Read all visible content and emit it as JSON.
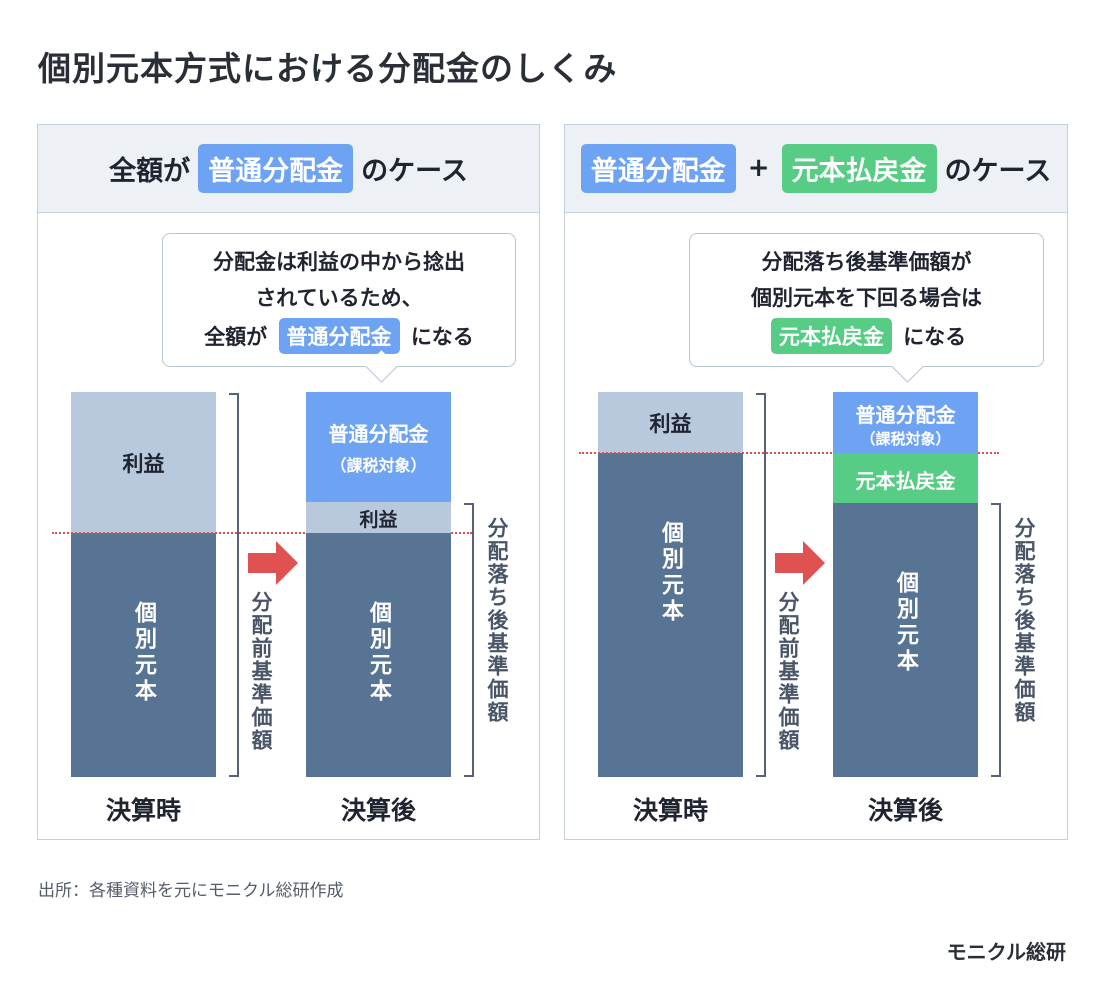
{
  "title": "個別元本方式における分配金のしくみ",
  "left_panel": {
    "header_pre": "全額が",
    "header_chip": "普通分配金",
    "header_post": "のケース",
    "bubble_line1": "分配金は利益の中から捻出",
    "bubble_line2": "されているため、",
    "bubble_line3_pre": "全額が",
    "bubble_line3_chip": "普通分配金",
    "bubble_line3_post": "になる",
    "before_profit": "利益",
    "before_principal": "個別元本",
    "before_bracket_label": "分配前基準価額",
    "after_dist": "普通分配金",
    "after_dist_sub": "（課税対象）",
    "after_profit": "利益",
    "after_principal": "個別元本",
    "after_bracket_label": "分配落ち後基準価額",
    "label_before": "決算時",
    "label_after": "決算後"
  },
  "right_panel": {
    "header_chip1": "普通分配金",
    "header_plus": "+",
    "header_chip2": "元本払戻金",
    "header_post": "のケース",
    "bubble_line1": "分配落ち後基準価額が",
    "bubble_line2": "個別元本を下回る場合は",
    "bubble_line3_chip": "元本払戻金",
    "bubble_line3_post": "になる",
    "before_profit": "利益",
    "before_principal": "個別元本",
    "before_bracket_label": "分配前基準価額",
    "after_dist": "普通分配金",
    "after_dist_sub": "（課税対象）",
    "after_refund": "元本払戻金",
    "after_principal": "個別元本",
    "after_bracket_label": "分配落ち後基準価額",
    "label_before": "決算時",
    "label_after": "決算後"
  },
  "source": "出所：各種資料を元にモニクル総研作成",
  "logo": "モニクル総研",
  "colors": {
    "ordinary_distribution": "#6ea3f3",
    "principal_refund": "#56cc84",
    "profit": "#b8c9dd",
    "individual_principal": "#587494",
    "arrow": "#e05252",
    "dotted_line": "#d9534f"
  }
}
